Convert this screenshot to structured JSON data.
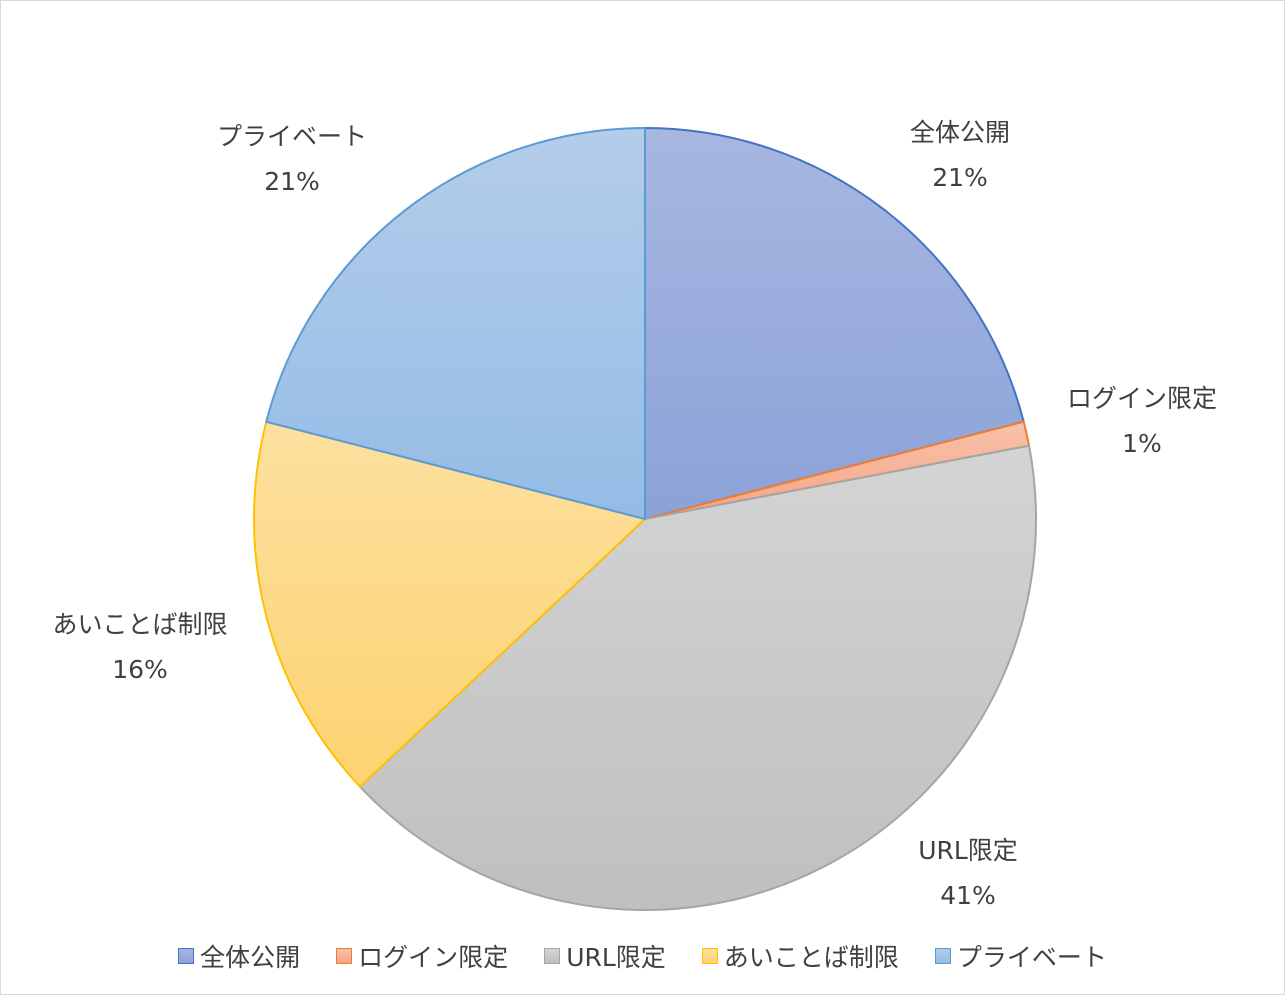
{
  "chart_data": {
    "type": "pie",
    "categories": [
      "全体公開",
      "ログイン限定",
      "URL限定",
      "あいことば制限",
      "プライベート"
    ],
    "values": [
      21,
      1,
      41,
      16,
      21
    ],
    "data_labels": [
      "21%",
      "1%",
      "41%",
      "16%",
      "21%"
    ],
    "title": "",
    "legend": "bottom",
    "start_angle_deg": 0,
    "direction": "clockwise",
    "colors": {
      "fill_top": [
        "#a6b7e0",
        "#f8c2aa",
        "#d4d4d4",
        "#fde0a0",
        "#b4cdea"
      ],
      "fill_bottom": [
        "#8ca2d8",
        "#f4a486",
        "#bfbfbf",
        "#fdd370",
        "#94bce6"
      ],
      "stroke": [
        "#4472c4",
        "#ed7d31",
        "#a5a5a5",
        "#ffc000",
        "#5b9bd5"
      ]
    }
  }
}
